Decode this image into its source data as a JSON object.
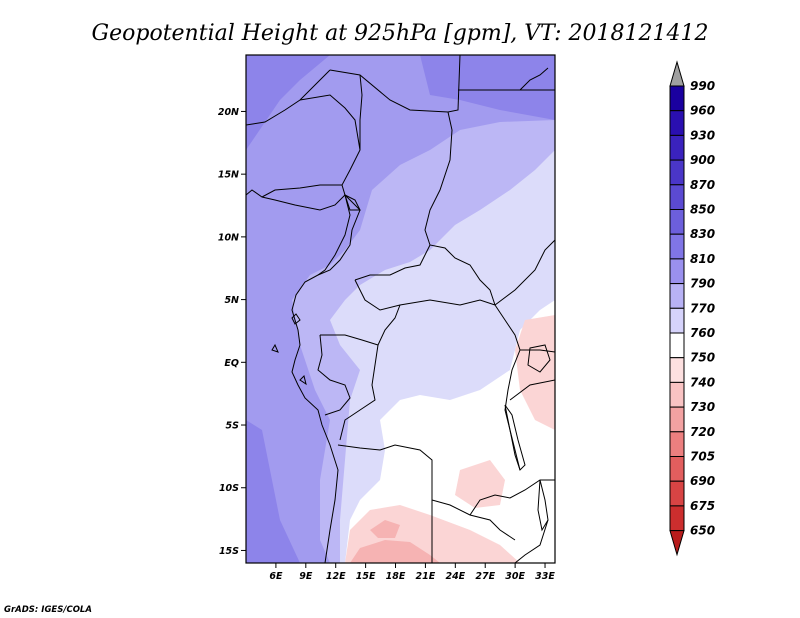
{
  "title": "Geopotential Height at 925hPa [gpm], VT: 2018121412",
  "credit": "GrADS: IGES/COLA",
  "map": {
    "lon_range": [
      3,
      34
    ],
    "lat_range": [
      -16,
      24.5
    ],
    "lat_ticks": [
      {
        "value": 20,
        "label": "20N"
      },
      {
        "value": 15,
        "label": "15N"
      },
      {
        "value": 10,
        "label": "10N"
      },
      {
        "value": 5,
        "label": "5N"
      },
      {
        "value": 0,
        "label": "EQ"
      },
      {
        "value": -5,
        "label": "5S"
      },
      {
        "value": -10,
        "label": "10S"
      },
      {
        "value": -15,
        "label": "15S"
      }
    ],
    "lon_ticks": [
      {
        "value": 6,
        "label": "6E"
      },
      {
        "value": 9,
        "label": "9E"
      },
      {
        "value": 12,
        "label": "12E"
      },
      {
        "value": 15,
        "label": "15E"
      },
      {
        "value": 18,
        "label": "18E"
      },
      {
        "value": 21,
        "label": "21E"
      },
      {
        "value": 24,
        "label": "24E"
      },
      {
        "value": 27,
        "label": "27E"
      },
      {
        "value": 30,
        "label": "30E"
      },
      {
        "value": 33,
        "label": "33E"
      }
    ]
  },
  "colorbar": {
    "labels": [
      "990",
      "960",
      "930",
      "900",
      "870",
      "850",
      "830",
      "810",
      "790",
      "770",
      "760",
      "750",
      "740",
      "730",
      "720",
      "705",
      "690",
      "675",
      "650"
    ],
    "colors": [
      "#a0a0a0",
      "#1a009f",
      "#2a0fb0",
      "#3a22bd",
      "#4a36c8",
      "#5b4ad2",
      "#6c5fdc",
      "#8075e6",
      "#9a90ee",
      "#b8b2f5",
      "#d6d3fb",
      "#ffffff",
      "#fde0e0",
      "#f9c3c3",
      "#f3a2a2",
      "#ec7f7f",
      "#e25e5e",
      "#d84444",
      "#cc2e2e",
      "#b81c1c"
    ]
  },
  "field_zones": [
    {
      "name": "lt_750",
      "color": "#f6b3b3"
    },
    {
      "name": "750_760",
      "color": "#fbd5d5"
    },
    {
      "name": "760_770",
      "color": "#ffffff"
    },
    {
      "name": "770_790",
      "color": "#dcdcfa"
    },
    {
      "name": "790_810",
      "color": "#bcb7f5"
    },
    {
      "name": "810_830",
      "color": "#a29bef"
    },
    {
      "name": "830_850",
      "color": "#8d84ea"
    }
  ]
}
